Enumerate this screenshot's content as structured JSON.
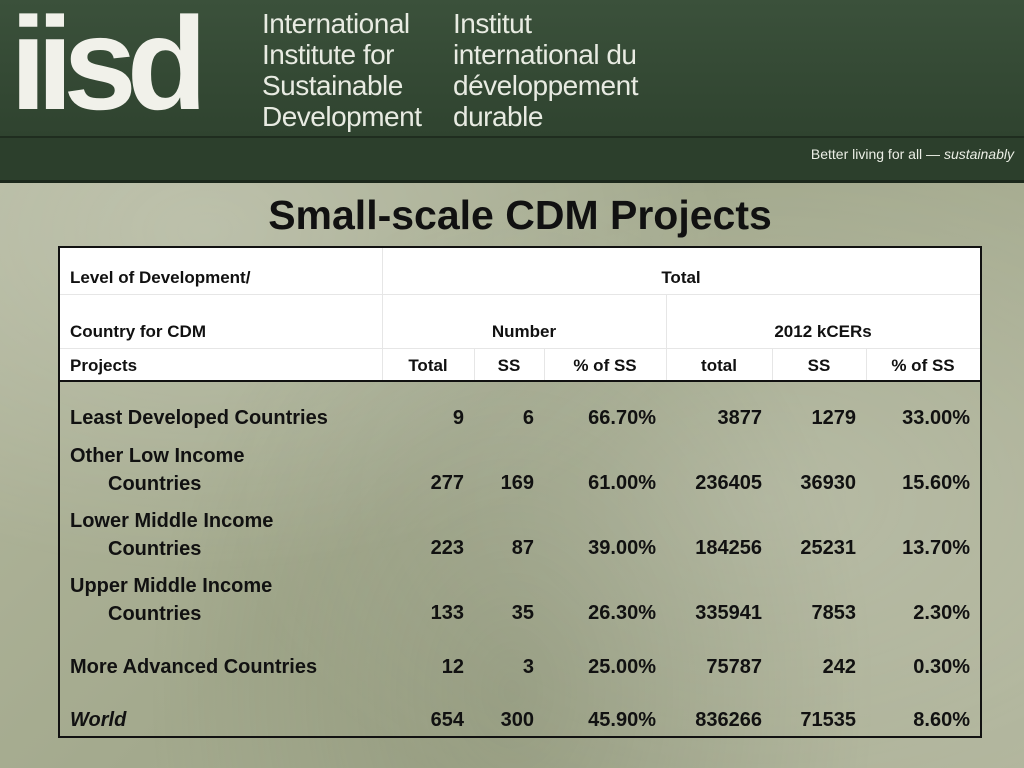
{
  "header": {
    "logo": "iisd",
    "org_en": [
      "International",
      "Institute for",
      "Sustainable",
      "Development"
    ],
    "org_fr": [
      "Institut",
      "international du",
      "développement",
      "durable"
    ],
    "tagline_main": "Better living for all —",
    "tagline_em": "sustainably"
  },
  "title": "Small-scale CDM Projects",
  "table": {
    "header": {
      "level_label": "Level of Development/",
      "country_label": "Country for CDM",
      "projects_label": "Projects",
      "total_label": "Total",
      "number_label": "Number",
      "kcers_label": "2012 kCERs",
      "sub": [
        "Total",
        "SS",
        "% of SS",
        "total",
        "SS",
        "% of SS"
      ]
    },
    "rows": [
      {
        "line1": "Least Developed Countries",
        "line2": "",
        "values": [
          "9",
          "6",
          "66.70%",
          "3877",
          "1279",
          "33.00%"
        ]
      },
      {
        "line1": "Other Low Income",
        "line2": "Countries",
        "values": [
          "277",
          "169",
          "61.00%",
          "236405",
          "36930",
          "15.60%"
        ]
      },
      {
        "line1": "Lower Middle Income",
        "line2": "Countries",
        "values": [
          "223",
          "87",
          "39.00%",
          "184256",
          "25231",
          "13.70%"
        ]
      },
      {
        "line1": "Upper Middle Income",
        "line2": "Countries",
        "values": [
          "133",
          "35",
          "26.30%",
          "335941",
          "7853",
          "2.30%"
        ]
      },
      {
        "line1": "More Advanced Countries",
        "line2": "",
        "values": [
          "12",
          "3",
          "25.00%",
          "75787",
          "242",
          "0.30%"
        ]
      },
      {
        "line1": "World",
        "line2": "",
        "values": [
          "654",
          "300",
          "45.90%",
          "836266",
          "71535",
          "8.60%"
        ]
      }
    ]
  }
}
